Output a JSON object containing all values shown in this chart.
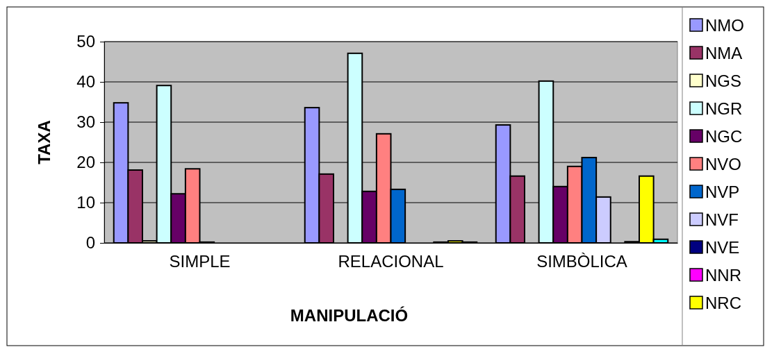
{
  "chart_data": {
    "type": "bar",
    "xlabel": "MANIPULACIÓ",
    "ylabel": "TAXA",
    "categories": [
      "SIMPLE",
      "RELACIONAL",
      "SIMBÒLICA"
    ],
    "ylim": [
      0,
      50
    ],
    "yticks": [
      0,
      10,
      20,
      30,
      40,
      50
    ],
    "grid": "y",
    "legend": "right",
    "series": [
      {
        "name": "NMO",
        "color": "#9999ff",
        "values": [
          34.8,
          33.6,
          29.3
        ]
      },
      {
        "name": "NMA",
        "color": "#993366",
        "values": [
          18.1,
          17.1,
          16.6
        ]
      },
      {
        "name": "NGS",
        "color": "#ffffcc",
        "values": [
          0.5,
          0,
          0
        ]
      },
      {
        "name": "NGR",
        "color": "#ccffff",
        "values": [
          39.1,
          47.1,
          40.2
        ]
      },
      {
        "name": "NGC",
        "color": "#660066",
        "values": [
          12.2,
          12.8,
          14.0
        ]
      },
      {
        "name": "NVO",
        "color": "#ff8080",
        "values": [
          18.4,
          27.1,
          19.0
        ]
      },
      {
        "name": "NVP",
        "color": "#0066cc",
        "values": [
          0.2,
          13.3,
          21.2
        ]
      },
      {
        "name": "NVF",
        "color": "#ccccff",
        "values": [
          0,
          0,
          11.4
        ]
      },
      {
        "name": "NVE",
        "color": "#000080",
        "values": [
          0,
          0,
          0
        ]
      },
      {
        "name": "NNR",
        "color": "#ff00ff",
        "values": [
          0,
          0.2,
          0.3
        ]
      },
      {
        "name": "NRC",
        "color": "#ffff00",
        "values": [
          0,
          0.5,
          16.6
        ]
      },
      {
        "color": "#00ffff",
        "values": [
          0,
          0.2,
          0.9
        ]
      }
    ]
  }
}
